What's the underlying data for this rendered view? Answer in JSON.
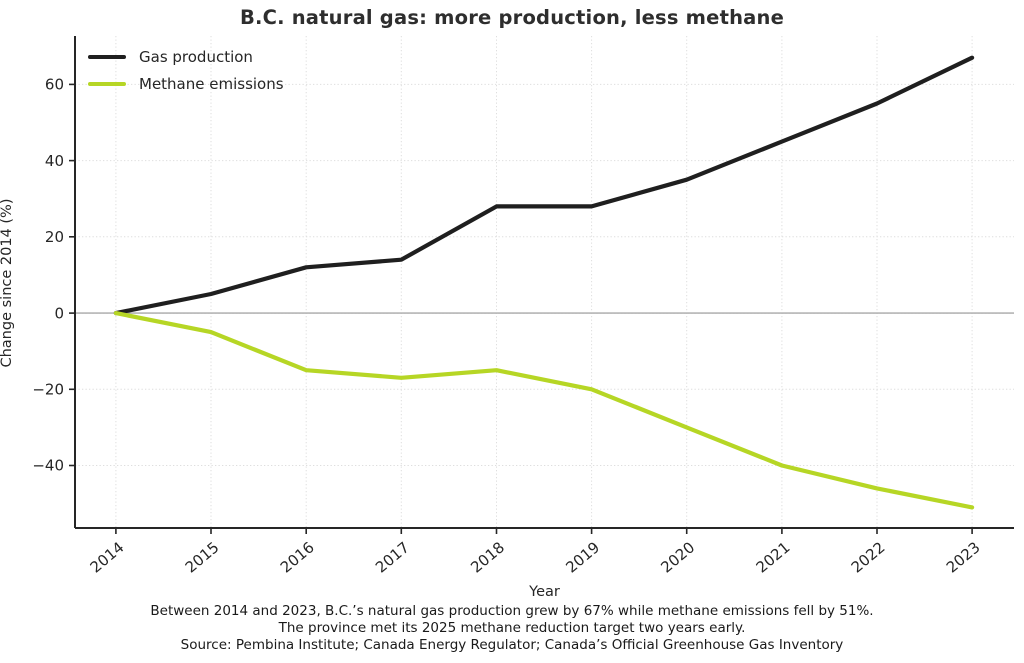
{
  "page": {
    "background": "#ffffff"
  },
  "caption": {
    "line1": "Between 2014 and 2023, B.C.’s natural gas production grew by 67% while methane emissions fell by 51%.",
    "line2": "The province met its 2025 methane reduction target two years early.",
    "line3": "Source: Pembina Institute; Canada Energy Regulator; Canada’s Official Greenhouse Gas Inventory"
  },
  "chart_data": {
    "type": "line",
    "title": "B.C. natural gas: more production, less methane",
    "xlabel": "Year",
    "ylabel": "Change since 2014 (%)",
    "x": [
      2014,
      2015,
      2016,
      2017,
      2018,
      2019,
      2020,
      2021,
      2022,
      2023
    ],
    "series": [
      {
        "name": "Gas production",
        "color": "#1f1f1f",
        "values": [
          0,
          5,
          12,
          14,
          28,
          28,
          35,
          45,
          55,
          67
        ]
      },
      {
        "name": "Methane emissions",
        "color": "#b6d625",
        "values": [
          0,
          -5,
          -15,
          -17,
          -15,
          -20,
          -30,
          -40,
          -46,
          -51
        ]
      }
    ],
    "xlim": [
      2013.57,
      2023.44
    ],
    "ylim": [
      -56.4,
      72.7
    ],
    "yticks": [
      {
        "value": 60,
        "label": "60"
      },
      {
        "value": 40,
        "label": "40"
      },
      {
        "value": 20,
        "label": "20"
      },
      {
        "value": 0,
        "label": "0"
      },
      {
        "value": -20,
        "label": "−20"
      },
      {
        "value": -40,
        "label": "−40"
      }
    ],
    "grid": true,
    "grid_style": "dotted",
    "zero_line": true,
    "legend_position": "upper left",
    "colors": {
      "grid": "#dedede",
      "zero_line": "#a8a8a8",
      "spine": "#262626",
      "tick_label": "#262626"
    }
  }
}
